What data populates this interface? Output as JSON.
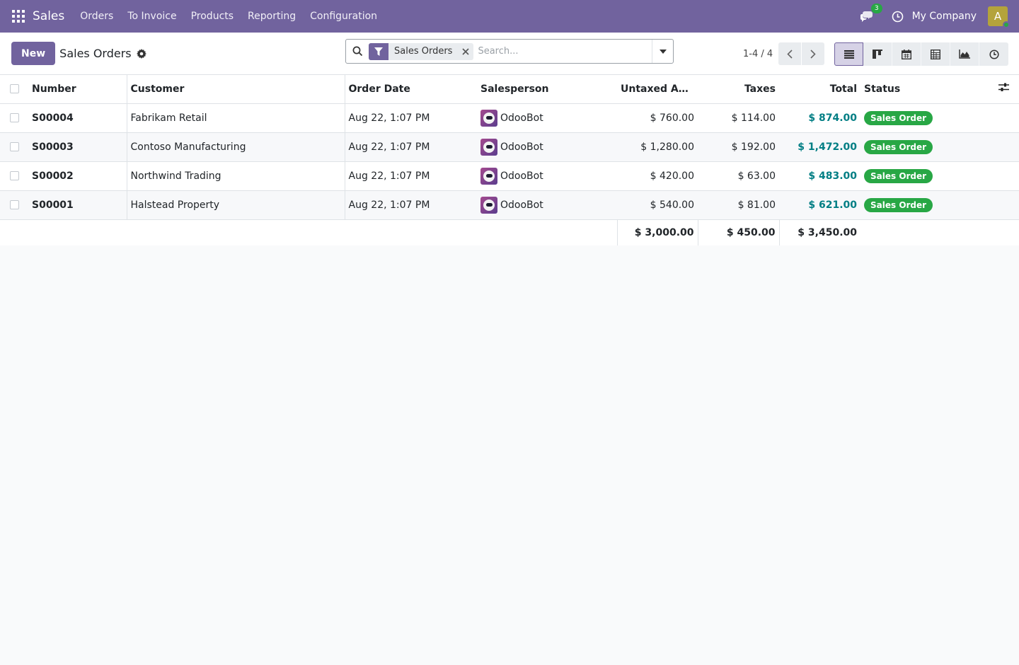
{
  "navbar": {
    "brand": "Sales",
    "menu": [
      "Orders",
      "To Invoice",
      "Products",
      "Reporting",
      "Configuration"
    ],
    "chat_badge": "3",
    "company": "My Company",
    "avatar_letter": "A"
  },
  "control": {
    "new_label": "New",
    "title": "Sales Orders",
    "facet": "Sales Orders",
    "search_placeholder": "Search...",
    "pager": "1-4 / 4"
  },
  "table": {
    "headers": {
      "number": "Number",
      "customer": "Customer",
      "order_date": "Order Date",
      "salesperson": "Salesperson",
      "untaxed": "Untaxed Amo...",
      "taxes": "Taxes",
      "total": "Total",
      "status": "Status"
    },
    "rows": [
      {
        "number": "S00004",
        "customer": "Fabrikam Retail",
        "date": "Aug 22, 1:07 PM",
        "salesperson": "OdooBot",
        "untaxed": "$ 760.00",
        "taxes": "$ 114.00",
        "total": "$ 874.00",
        "status": "Sales Order"
      },
      {
        "number": "S00003",
        "customer": "Contoso Manufacturing",
        "date": "Aug 22, 1:07 PM",
        "salesperson": "OdooBot",
        "untaxed": "$ 1,280.00",
        "taxes": "$ 192.00",
        "total": "$ 1,472.00",
        "status": "Sales Order"
      },
      {
        "number": "S00002",
        "customer": "Northwind Trading",
        "date": "Aug 22, 1:07 PM",
        "salesperson": "OdooBot",
        "untaxed": "$ 420.00",
        "taxes": "$ 63.00",
        "total": "$ 483.00",
        "status": "Sales Order"
      },
      {
        "number": "S00001",
        "customer": "Halstead Property",
        "date": "Aug 22, 1:07 PM",
        "salesperson": "OdooBot",
        "untaxed": "$ 540.00",
        "taxes": "$ 81.00",
        "total": "$ 621.00",
        "status": "Sales Order"
      }
    ],
    "totals": {
      "untaxed": "$ 3,000.00",
      "taxes": "$ 450.00",
      "total": "$ 3,450.00"
    }
  },
  "colors": {
    "primary": "#71639e",
    "success": "#28a745",
    "link": "#017e84"
  }
}
